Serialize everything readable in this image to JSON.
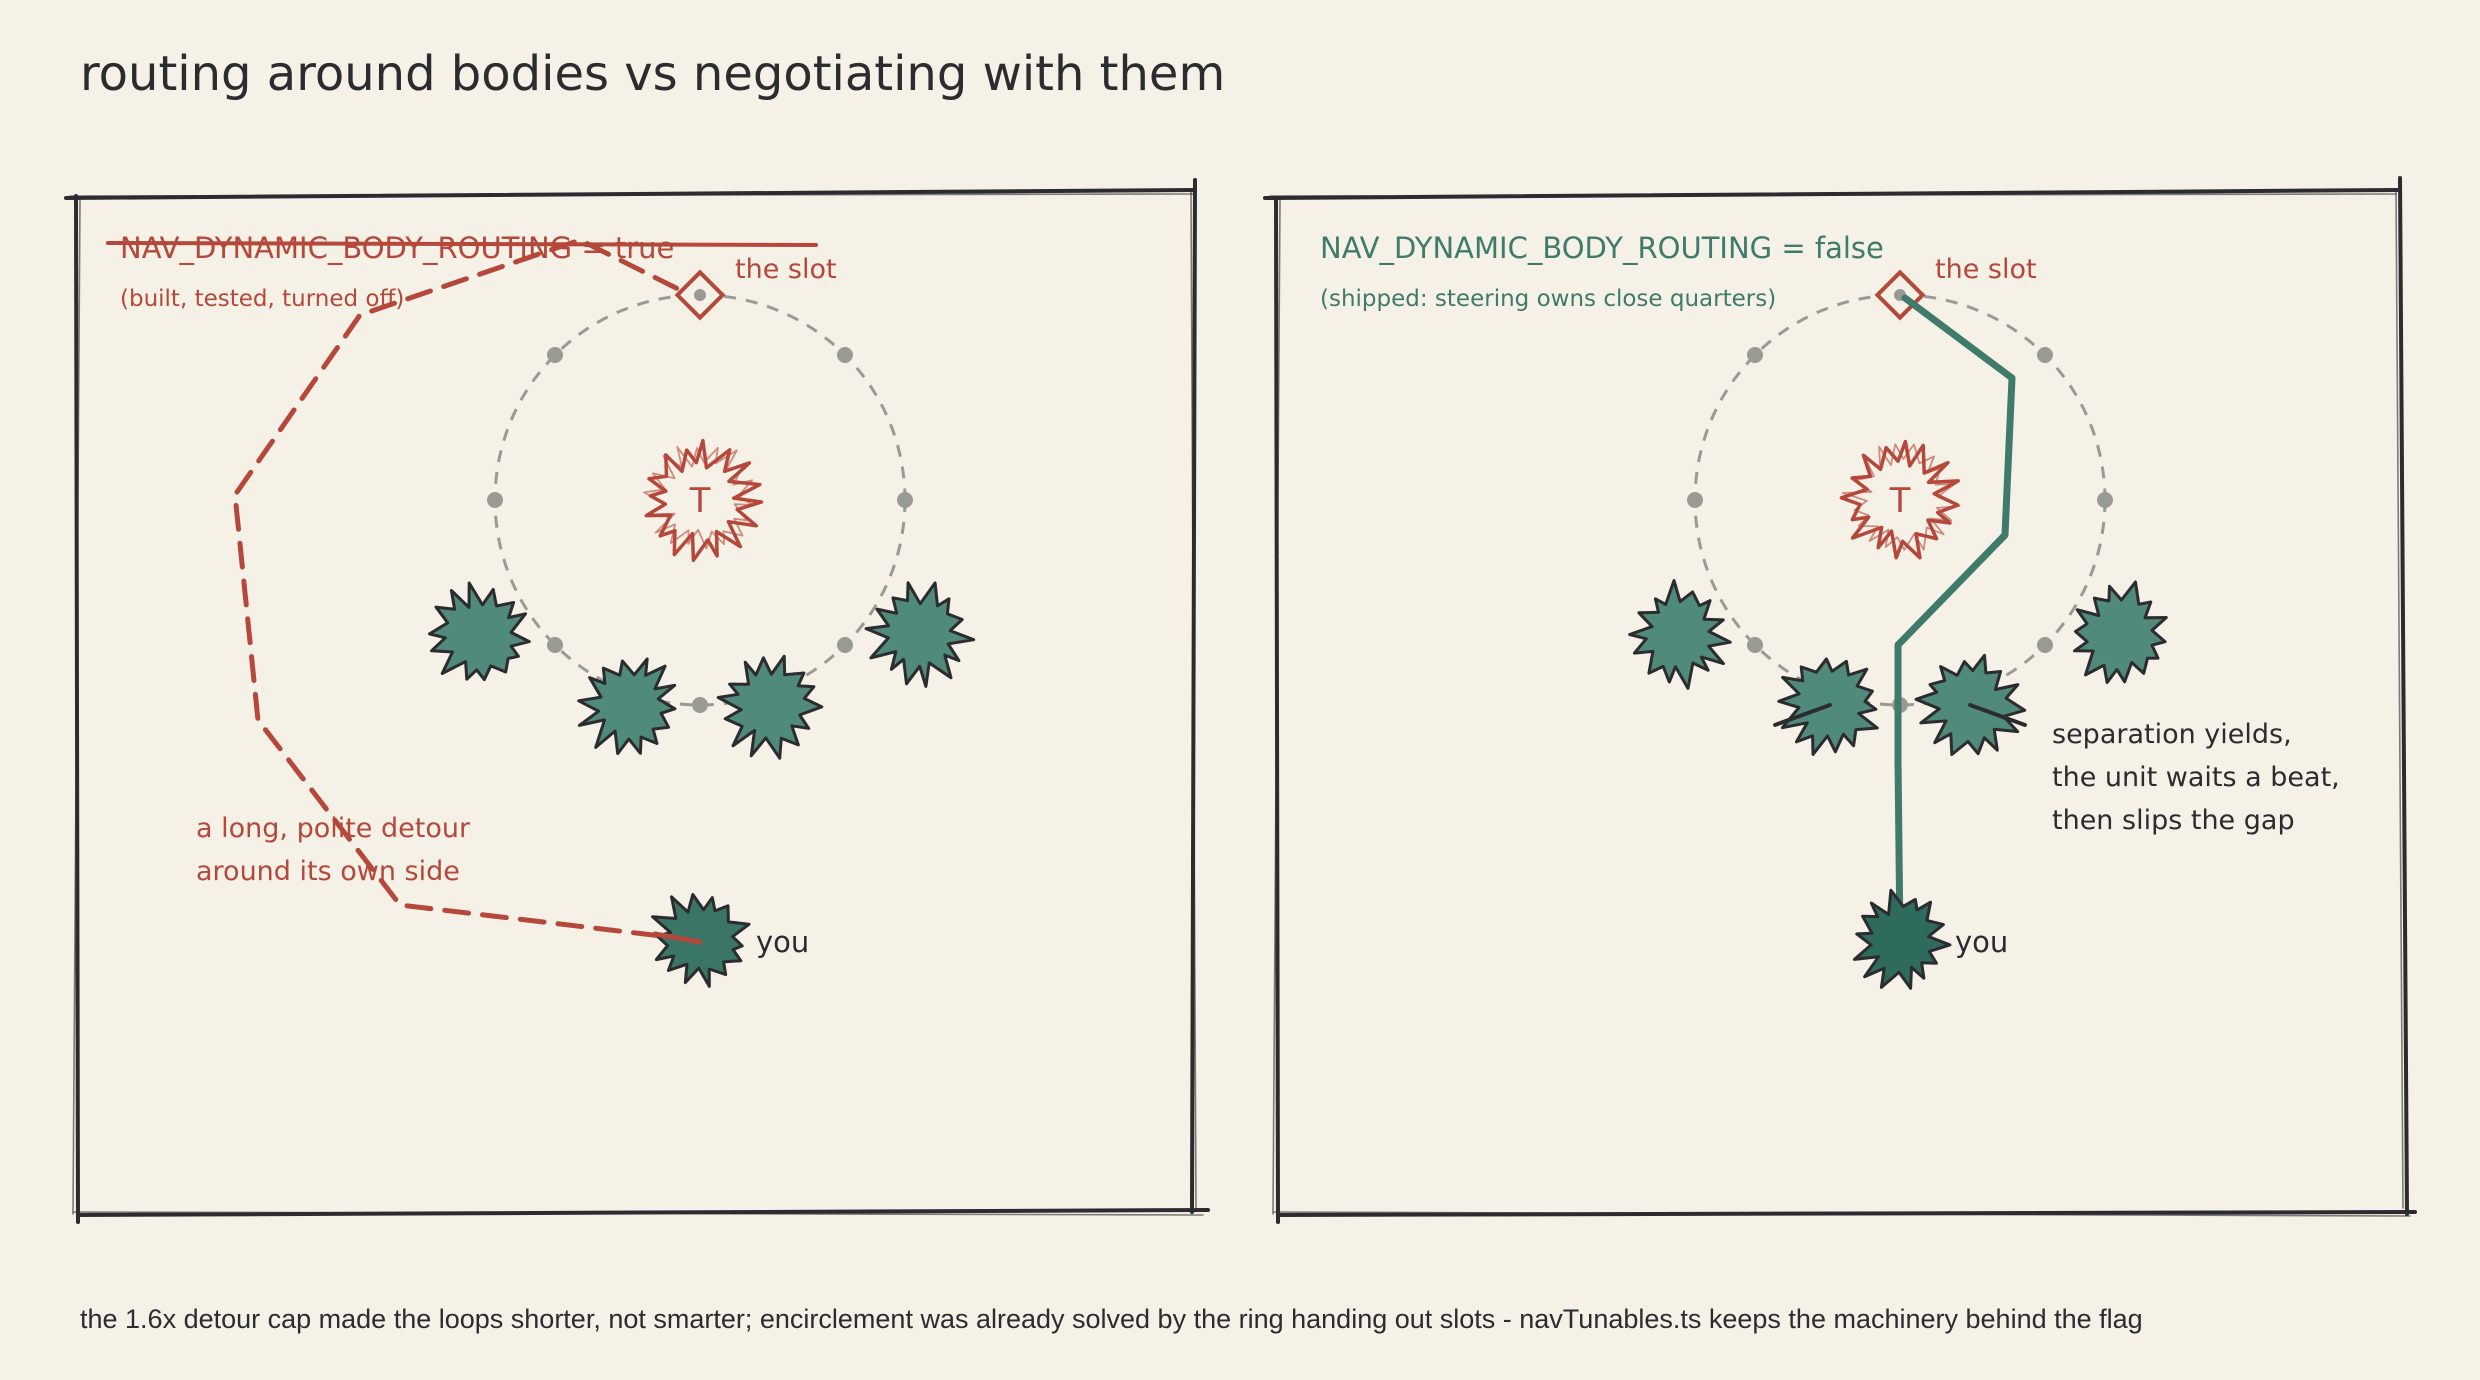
{
  "title": "routing around bodies vs negotiating with them",
  "colors": {
    "background": "#f5f1e7",
    "ink": "#2b2b30",
    "red": "#b5483a",
    "green": "#3f7a6a",
    "teal_unit": "#3f7a6a",
    "ring_grey": "#9a9a95"
  },
  "panels": {
    "left": {
      "flag_label": "NAV_DYNAMIC_BODY_ROUTING = true",
      "flag_struck": true,
      "sub_label": "(built, tested, turned off)",
      "slot_label": "the slot",
      "target_label": "T",
      "unit_label": "you",
      "annotation": [
        "a long, polite detour",
        "around its own side"
      ],
      "path_style": "dashed-red"
    },
    "right": {
      "flag_label": "NAV_DYNAMIC_BODY_ROUTING = false",
      "flag_struck": false,
      "sub_label": "(shipped: steering owns close quarters)",
      "slot_label": "the slot",
      "target_label": "T",
      "unit_label": "you",
      "annotation": [
        "separation yields,",
        "the unit waits a beat,",
        "then slips the gap"
      ],
      "path_style": "solid-green"
    }
  },
  "footer": "the 1.6x detour cap made the loops shorter, not smarter; encirclement was already solved by the ring handing out slots - navTunables.ts keeps the machinery behind the flag",
  "icons": {
    "target": "spiky-target-icon",
    "slot": "diamond-slot-icon",
    "unit": "spiky-unit-icon",
    "ring_node": "ring-node-dot"
  }
}
